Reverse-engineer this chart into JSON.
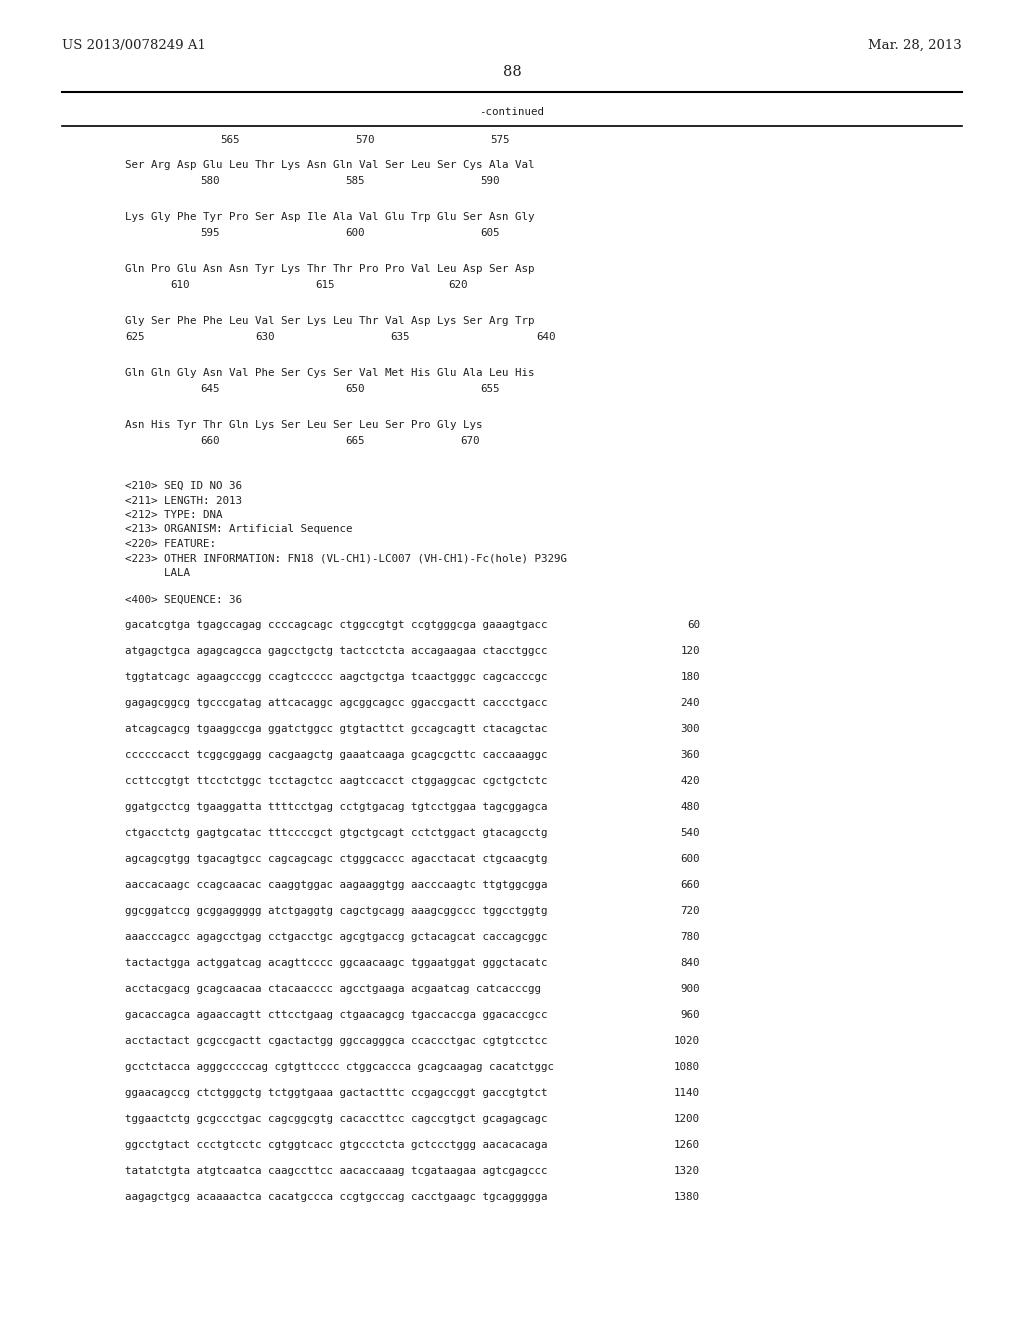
{
  "header_left": "US 2013/0078249 A1",
  "header_right": "Mar. 28, 2013",
  "page_number": "88",
  "continued_label": "-continued",
  "background_color": "#ffffff",
  "text_color": "#231f20",
  "font_size_header": 9.5,
  "font_size_body": 7.8,
  "font_size_page": 10.5,
  "sequence_header_block": [
    "<210> SEQ ID NO 36",
    "<211> LENGTH: 2013",
    "<212> TYPE: DNA",
    "<213> ORGANISM: Artificial Sequence",
    "<220> FEATURE:",
    "<223> OTHER INFORMATION: FN18 (VL-CH1)-LC007 (VH-CH1)-Fc(hole) P329G",
    "      LALA"
  ],
  "sequence_label": "<400> SEQUENCE: 36",
  "dna_lines": [
    {
      "seq": "gacatcgtga tgagccagag ccccagcagc ctggccgtgt ccgtgggcga gaaagtgacc",
      "num": "60"
    },
    {
      "seq": "atgagctgca agagcagcca gagcctgctg tactcctcta accagaagaa ctacctggcc",
      "num": "120"
    },
    {
      "seq": "tggtatcagc agaagcccgg ccagtccccc aagctgctga tcaactgggc cagcacccgc",
      "num": "180"
    },
    {
      "seq": "gagagcggcg tgcccgatag attcacaggc agcggcagcc ggaccgactt caccctgacc",
      "num": "240"
    },
    {
      "seq": "atcagcagcg tgaaggccga ggatctggcc gtgtacttct gccagcagtt ctacagctac",
      "num": "300"
    },
    {
      "seq": "ccccccacct tcggcggagg cacgaagctg gaaatcaaga gcagcgcttc caccaaaggc",
      "num": "360"
    },
    {
      "seq": "ccttccgtgt ttcctctggc tcctagctcc aagtccacct ctggaggcac cgctgctctc",
      "num": "420"
    },
    {
      "seq": "ggatgcctcg tgaaggatta ttttcctgag cctgtgacag tgtcctggaa tagcggagca",
      "num": "480"
    },
    {
      "seq": "ctgacctctg gagtgcatac tttccccgct gtgctgcagt cctctggact gtacagcctg",
      "num": "540"
    },
    {
      "seq": "agcagcgtgg tgacagtgcc cagcagcagc ctgggcaccc agacctacat ctgcaacgtg",
      "num": "600"
    },
    {
      "seq": "aaccacaagc ccagcaacac caaggtggac aagaaggtgg aacccaagtc ttgtggcgga",
      "num": "660"
    },
    {
      "seq": "ggcggatccg gcggaggggg atctgaggtg cagctgcagg aaagcggccc tggcctggtg",
      "num": "720"
    },
    {
      "seq": "aaacccagcc agagcctgag cctgacctgc agcgtgaccg gctacagcat caccagcggc",
      "num": "780"
    },
    {
      "seq": "tactactgga actggatcag acagttcccc ggcaacaagc tggaatggat gggctacatc",
      "num": "840"
    },
    {
      "seq": "acctacgacg gcagcaacaa ctacaacccc agcctgaaga acgaatcag catcacccgg",
      "num": "900"
    },
    {
      "seq": "gacaccagca agaaccagtt cttcctgaag ctgaacagcg tgaccaccga ggacaccgcc",
      "num": "960"
    },
    {
      "seq": "acctactact gcgccgactt cgactactgg ggccagggca ccaccctgac cgtgtcctcc",
      "num": "1020"
    },
    {
      "seq": "gcctctacca agggcccccag cgtgttcccc ctggcaccca gcagcaagag cacatctggc",
      "num": "1080"
    },
    {
      "seq": "ggaacagccg ctctgggctg tctggtgaaa gactactttc ccgagccggt gaccgtgtct",
      "num": "1140"
    },
    {
      "seq": "tggaactctg gcgccctgac cagcggcgtg cacaccttcc cagccgtgct gcagagcagc",
      "num": "1200"
    },
    {
      "seq": "ggcctgtact ccctgtcctc cgtggtcacc gtgccctcta gctccctggg aacacacaga",
      "num": "1260"
    },
    {
      "seq": "tatatctgta atgtcaatca caagccttcc aacaccaaag tcgataagaa agtcgagccc",
      "num": "1320"
    },
    {
      "seq": "aagagctgcg acaaaactca cacatgccca ccgtgcccag cacctgaagc tgcaggggga",
      "num": "1380"
    }
  ]
}
